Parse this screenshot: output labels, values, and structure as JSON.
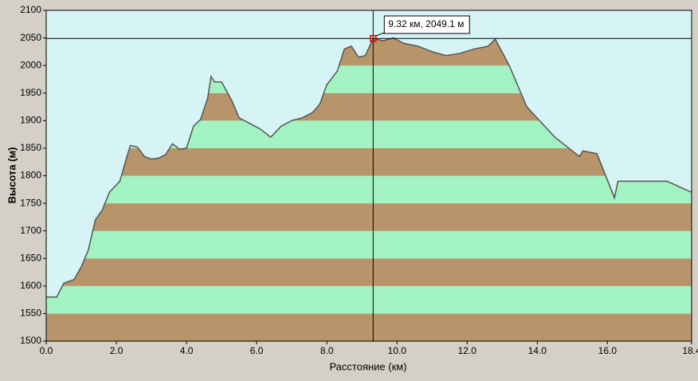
{
  "chart_data": {
    "type": "area",
    "xlabel": "Расстояние  (км)",
    "ylabel": "Высота (м)",
    "x": [
      0,
      0.3,
      0.5,
      0.8,
      1.0,
      1.2,
      1.4,
      1.6,
      1.8,
      2.1,
      2.3,
      2.4,
      2.6,
      2.8,
      3.0,
      3.2,
      3.4,
      3.6,
      3.8,
      4.0,
      4.2,
      4.4,
      4.6,
      4.7,
      4.8,
      5.0,
      5.3,
      5.5,
      5.8,
      6.1,
      6.4,
      6.7,
      7.0,
      7.3,
      7.6,
      7.8,
      8.0,
      8.3,
      8.5,
      8.7,
      8.9,
      9.1,
      9.32,
      9.6,
      9.9,
      10.2,
      10.6,
      11.0,
      11.4,
      11.8,
      12.2,
      12.6,
      12.8,
      13.2,
      13.7,
      14.5,
      15.2,
      15.3,
      15.7,
      16.2,
      16.3,
      17.7,
      18.4
    ],
    "values": [
      1580,
      1580,
      1605,
      1612,
      1635,
      1665,
      1720,
      1738,
      1770,
      1790,
      1835,
      1855,
      1852,
      1835,
      1830,
      1832,
      1838,
      1858,
      1848,
      1850,
      1890,
      1902,
      1940,
      1980,
      1970,
      1970,
      1935,
      1905,
      1895,
      1885,
      1870,
      1890,
      1900,
      1905,
      1915,
      1930,
      1965,
      1990,
      2030,
      2035,
      2015,
      2018,
      2049.1,
      2045,
      2050,
      2040,
      2035,
      2025,
      2018,
      2022,
      2030,
      2035,
      2048,
      2000,
      1925,
      1870,
      1835,
      1845,
      1840,
      1760,
      1790,
      1790,
      1770
    ],
    "xlim": [
      0,
      18.4
    ],
    "xticks": [
      {
        "value": 0,
        "label": "0.0"
      },
      {
        "value": 2,
        "label": "2.0"
      },
      {
        "value": 4,
        "label": "4.0"
      },
      {
        "value": 6,
        "label": "6.0"
      },
      {
        "value": 8,
        "label": "8.0"
      },
      {
        "value": 10,
        "label": "10.0"
      },
      {
        "value": 12,
        "label": "12.0"
      },
      {
        "value": 14,
        "label": "14.0"
      },
      {
        "value": 16,
        "label": "16.0"
      },
      {
        "value": 18.4,
        "label": "18.4"
      }
    ],
    "ylim": [
      1500,
      2100
    ],
    "yticks": [
      1500,
      1550,
      1600,
      1650,
      1700,
      1750,
      1800,
      1850,
      1900,
      1950,
      2000,
      2050,
      2100
    ],
    "band_colors": [
      "#b8946a",
      "#a2f2c2"
    ],
    "line_color": "#555555",
    "background": "#d6f3f6",
    "cursor": {
      "x": 9.32,
      "y": 2049.1,
      "label": "9.32 км, 2049.1 м"
    }
  }
}
